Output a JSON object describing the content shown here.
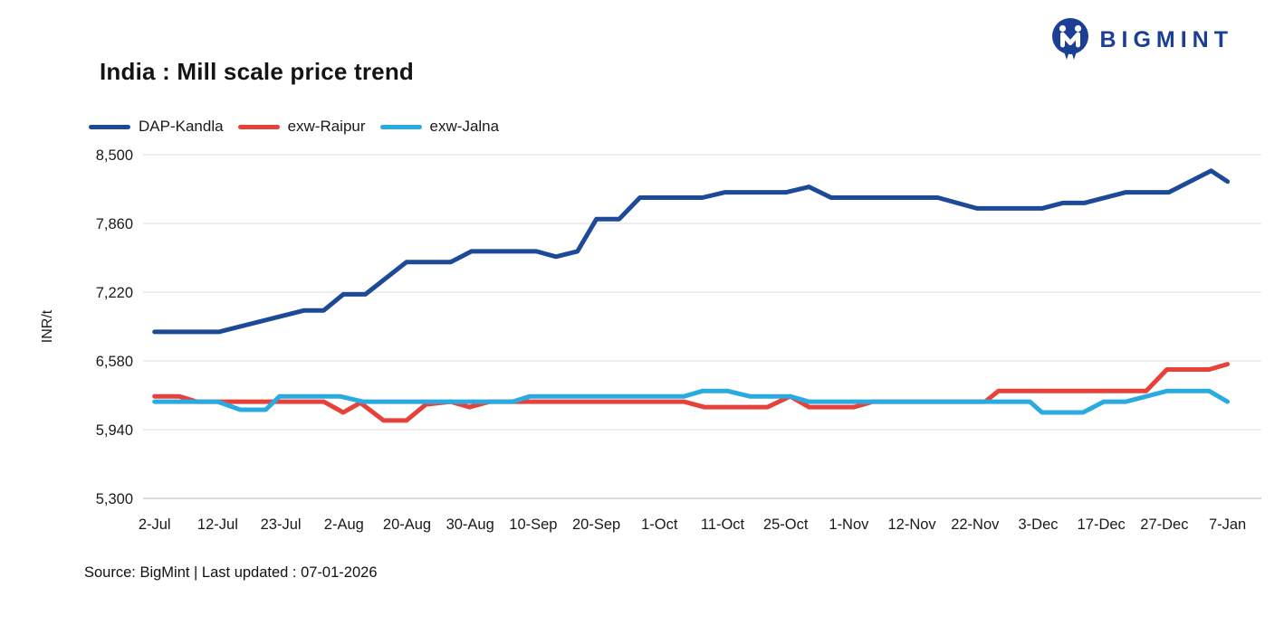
{
  "logo": {
    "text": "BIGMINT",
    "color": "#1b3f94"
  },
  "footer": {
    "source": "Source: BigMint | Last updated : 07-01-2026"
  },
  "chart_data": {
    "type": "line",
    "title": "India : Mill scale price trend",
    "xlabel": "",
    "ylabel": "INR/t",
    "ylim": [
      5300,
      8500
    ],
    "grid": "horizontal",
    "legend_position": "top-left",
    "axis_text_color": "#1a1a1a",
    "grid_color": "#e8e8e8",
    "axis_line_color": "#cfcfcf",
    "y_ticks": [
      {
        "value": 8500,
        "label": "8,500"
      },
      {
        "value": 7860,
        "label": "7,860"
      },
      {
        "value": 7220,
        "label": "7,220"
      },
      {
        "value": 6580,
        "label": "6,580"
      },
      {
        "value": 5940,
        "label": "5,940"
      },
      {
        "value": 5300,
        "label": "5,300"
      }
    ],
    "x_tick_labels": [
      "2-Jul",
      "12-Jul",
      "23-Jul",
      "2-Aug",
      "20-Aug",
      "30-Aug",
      "10-Sep",
      "20-Sep",
      "1-Oct",
      "11-Oct",
      "25-Oct",
      "1-Nov",
      "12-Nov",
      "22-Nov",
      "3-Dec",
      "17-Dec",
      "27-Dec",
      "7-Jan"
    ],
    "x_note": "points use fractional x-tick positions (0 = 2-Jul ... 17 = 7-Jan), values in INR/t",
    "series": [
      {
        "name": "DAP-Kandla",
        "color": "#1c4a99",
        "points": [
          [
            0,
            6850
          ],
          [
            1.02,
            6850
          ],
          [
            2.37,
            7050
          ],
          [
            2.68,
            7050
          ],
          [
            2.99,
            7200
          ],
          [
            3.34,
            7200
          ],
          [
            3.99,
            7500
          ],
          [
            4.69,
            7500
          ],
          [
            5.02,
            7600
          ],
          [
            6.05,
            7600
          ],
          [
            6.36,
            7550
          ],
          [
            6.7,
            7600
          ],
          [
            7.0,
            7900
          ],
          [
            7.36,
            7900
          ],
          [
            7.69,
            8100
          ],
          [
            8.68,
            8100
          ],
          [
            9.04,
            8150
          ],
          [
            10.01,
            8150
          ],
          [
            10.37,
            8200
          ],
          [
            10.72,
            8100
          ],
          [
            12.41,
            8100
          ],
          [
            13.03,
            8000
          ],
          [
            14.06,
            8000
          ],
          [
            14.39,
            8050
          ],
          [
            14.73,
            8050
          ],
          [
            15.39,
            8150
          ],
          [
            16.07,
            8150
          ],
          [
            16.74,
            8350
          ],
          [
            17,
            8250
          ]
        ]
      },
      {
        "name": "exw-Raipur",
        "color": "#e6423a",
        "points": [
          [
            0,
            6250
          ],
          [
            0.39,
            6250
          ],
          [
            0.67,
            6200
          ],
          [
            2.68,
            6200
          ],
          [
            2.99,
            6100
          ],
          [
            3.26,
            6190
          ],
          [
            3.63,
            6025
          ],
          [
            3.99,
            6025
          ],
          [
            4.3,
            6175
          ],
          [
            4.69,
            6200
          ],
          [
            4.99,
            6150
          ],
          [
            5.31,
            6200
          ],
          [
            8.39,
            6200
          ],
          [
            8.71,
            6150
          ],
          [
            9.71,
            6150
          ],
          [
            10.07,
            6250
          ],
          [
            10.37,
            6150
          ],
          [
            11.08,
            6150
          ],
          [
            11.38,
            6200
          ],
          [
            13.16,
            6200
          ],
          [
            13.37,
            6300
          ],
          [
            15.71,
            6300
          ],
          [
            16.04,
            6500
          ],
          [
            16.71,
            6500
          ],
          [
            17,
            6550
          ]
        ]
      },
      {
        "name": "exw-Jalna",
        "color": "#29abe2",
        "points": [
          [
            0,
            6200
          ],
          [
            1.0,
            6200
          ],
          [
            1.36,
            6125
          ],
          [
            1.76,
            6125
          ],
          [
            1.98,
            6250
          ],
          [
            2.94,
            6250
          ],
          [
            3.3,
            6200
          ],
          [
            5.67,
            6200
          ],
          [
            5.95,
            6250
          ],
          [
            8.39,
            6250
          ],
          [
            8.68,
            6300
          ],
          [
            9.08,
            6300
          ],
          [
            9.43,
            6250
          ],
          [
            10.07,
            6250
          ],
          [
            10.37,
            6200
          ],
          [
            13.87,
            6200
          ],
          [
            14.06,
            6100
          ],
          [
            14.71,
            6100
          ],
          [
            15.04,
            6200
          ],
          [
            15.39,
            6200
          ],
          [
            16.04,
            6300
          ],
          [
            16.71,
            6300
          ],
          [
            17,
            6200
          ]
        ]
      }
    ]
  }
}
